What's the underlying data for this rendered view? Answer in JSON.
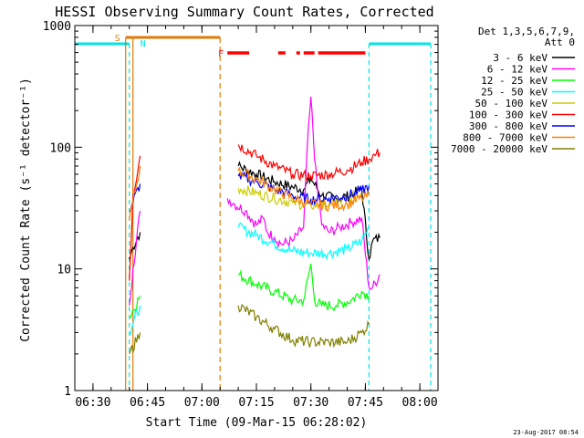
{
  "chart_data": {
    "type": "line",
    "title": "HESSI Observing Summary Count Rates, Corrected",
    "xlabel": "Start Time (09-Mar-15 06:28:02)",
    "ylabel": "Corrected Count Rate (s⁻¹ detector⁻¹)",
    "x_ticks": [
      "06:30",
      "06:45",
      "07:00",
      "07:15",
      "07:30",
      "07:45",
      "08:00"
    ],
    "x_range": [
      "06:25",
      "08:05"
    ],
    "y_scale": "log",
    "y_ticks": [
      "1",
      "10",
      "100",
      "1000"
    ],
    "y_range": [
      1,
      1000
    ],
    "footer": "23-Aug-2017 08:54",
    "legend": {
      "header": [
        "Det 1,3,5,6,7,9,",
        "Att 0"
      ],
      "placement": "right"
    },
    "flag_labels": {
      "saa": "S",
      "night": "N",
      "flare": "F"
    },
    "flags": {
      "saa": {
        "color": "#e07a00",
        "intervals": [
          [
            "06:39",
            "06:41"
          ],
          [
            "06:41",
            "07:05"
          ]
        ]
      },
      "night": {
        "color": "#00e5e5",
        "intervals": [
          [
            "06:25",
            "06:40"
          ],
          [
            "07:46",
            "08:03"
          ]
        ]
      },
      "flare": {
        "color": "#ff0000",
        "intervals": [
          [
            "07:07",
            "07:13"
          ],
          [
            "07:21",
            "07:23"
          ],
          [
            "07:26",
            "07:27"
          ],
          [
            "07:28",
            "07:31"
          ],
          [
            "07:32",
            "07:45"
          ]
        ]
      }
    },
    "gaps": [
      "06:44",
      "07:07",
      "07:46"
    ],
    "series": [
      {
        "name": "3 - 6 keV",
        "color": "#000000",
        "x": [
          "06:40",
          "06:41",
          "06:43",
          "07:07",
          "07:10",
          "07:15",
          "07:20",
          "07:25",
          "07:28",
          "07:30",
          "07:33",
          "07:37",
          "07:41",
          "07:44",
          "07:46",
          "07:47",
          "07:49"
        ],
        "values": [
          12,
          15,
          20,
          80,
          70,
          60,
          52,
          47,
          45,
          55,
          40,
          38,
          40,
          46,
          12,
          17,
          18
        ]
      },
      {
        "name": "6 - 12 keV",
        "color": "#ff00ff",
        "x": [
          "06:40",
          "06:41",
          "06:43",
          "07:07",
          "07:09",
          "07:12",
          "07:15",
          "07:17",
          "07:18",
          "07:20",
          "07:22",
          "07:25",
          "07:28",
          "07:29",
          "07:30",
          "07:31",
          "07:33",
          "07:35",
          "07:38",
          "07:41",
          "07:44",
          "07:46",
          "07:47",
          "07:49"
        ],
        "values": [
          5,
          10,
          30,
          38,
          34,
          30,
          23,
          26,
          20,
          18,
          16,
          17,
          22,
          100,
          260,
          80,
          23,
          20,
          22,
          24,
          26,
          7,
          7,
          9
        ]
      },
      {
        "name": "12 - 25 keV",
        "color": "#00ff00",
        "x": [
          "06:40",
          "06:43",
          "07:07",
          "07:10",
          "07:15",
          "07:20",
          "07:25",
          "07:28",
          "07:30",
          "07:31",
          "07:33",
          "07:37",
          "07:41",
          "07:44",
          "07:46",
          "07:49"
        ],
        "values": [
          4,
          6,
          10,
          9,
          7.5,
          6.5,
          5.5,
          5.5,
          11,
          5.5,
          5,
          5,
          5.5,
          6.5,
          6,
          7
        ]
      },
      {
        "name": "25 - 50 keV",
        "color": "#00ffff",
        "x": [
          "06:40",
          "06:43",
          "07:07",
          "07:10",
          "07:15",
          "07:20",
          "07:25",
          "07:30",
          "07:35",
          "07:40",
          "07:44",
          "07:46",
          "07:49"
        ],
        "values": [
          3,
          5,
          24,
          22,
          19,
          16,
          14,
          13.5,
          13.5,
          14.5,
          17,
          22,
          24
        ]
      },
      {
        "name": "50 - 100 keV",
        "color": "#cccc00",
        "x": [
          "07:07",
          "07:10",
          "07:15",
          "07:20",
          "07:25",
          "07:30",
          "07:35",
          "07:40",
          "07:44"
        ],
        "values": [
          48,
          46,
          42,
          38,
          35,
          33,
          34,
          37,
          42
        ]
      },
      {
        "name": "100 - 300 keV",
        "color": "#ff0000",
        "x": [
          "06:40",
          "06:41",
          "06:43",
          "07:07",
          "07:10",
          "07:15",
          "07:20",
          "07:25",
          "07:30",
          "07:35",
          "07:40",
          "07:44",
          "07:46",
          "07:48",
          "07:49"
        ],
        "values": [
          8,
          40,
          85,
          110,
          105,
          85,
          70,
          60,
          58,
          60,
          65,
          75,
          80,
          88,
          90
        ]
      },
      {
        "name": "300 - 800 keV",
        "color": "#0000ff",
        "x": [
          "06:40",
          "06:43",
          "07:07",
          "07:10",
          "07:15",
          "07:20",
          "07:25",
          "07:30",
          "07:35",
          "07:40",
          "07:44",
          "07:46",
          "07:49"
        ],
        "values": [
          30,
          50,
          60,
          58,
          52,
          45,
          40,
          37,
          38,
          40,
          44,
          48,
          50
        ]
      },
      {
        "name": "800 - 7000 keV",
        "color": "#ff8000",
        "x": [
          "06:40",
          "06:43",
          "07:07",
          "07:10",
          "07:15",
          "07:20",
          "07:25",
          "07:30",
          "07:35",
          "07:40",
          "07:44",
          "07:46",
          "07:49"
        ],
        "values": [
          25,
          70,
          67,
          64,
          55,
          45,
          38,
          34,
          33,
          34,
          38,
          40,
          44
        ]
      },
      {
        "name": "7000 - 20000 keV",
        "color": "#808000",
        "x": [
          "06:40",
          "06:43",
          "07:07",
          "07:10",
          "07:15",
          "07:20",
          "07:25",
          "07:30",
          "07:35",
          "07:40",
          "07:44",
          "07:46",
          "07:49"
        ],
        "values": [
          2,
          3,
          6,
          5,
          4,
          3.2,
          2.6,
          2.5,
          2.5,
          2.5,
          3,
          3.5,
          4
        ]
      }
    ]
  }
}
